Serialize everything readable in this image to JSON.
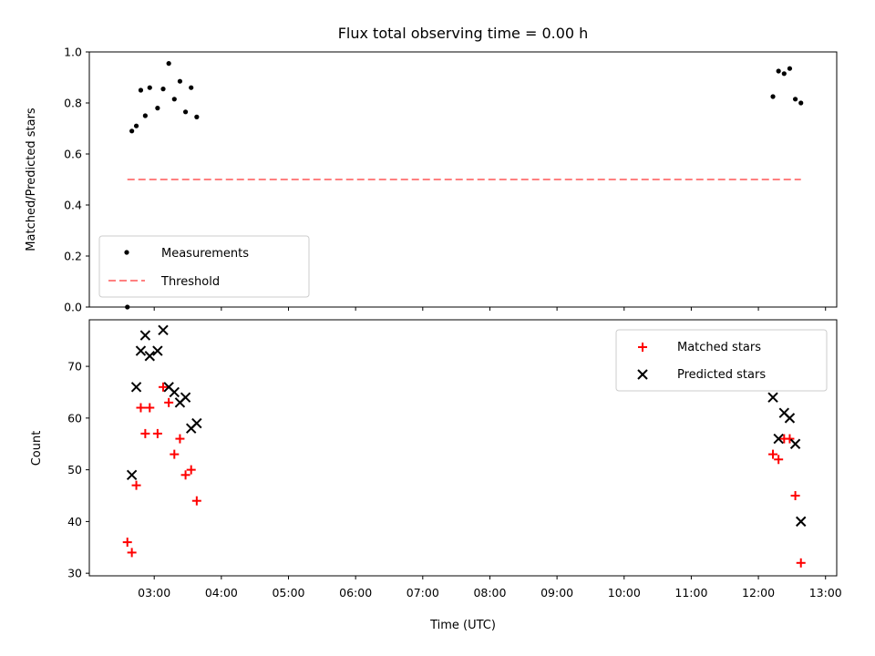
{
  "chart_data": [
    {
      "type": "scatter",
      "title": "Flux total observing time = 0.00 h",
      "xlabel": "",
      "ylabel": "Matched/Predicted stars",
      "ylim": [
        0.0,
        1.0
      ],
      "yticks": [
        "0.0",
        "0.2",
        "0.4",
        "0.6",
        "0.8",
        "1.0"
      ],
      "legend_position": "lower-left",
      "series": [
        {
          "name": "Measurements",
          "marker": "dot",
          "color": "#000000",
          "points": [
            {
              "x": "02:36",
              "y": 0.0
            },
            {
              "x": "02:40",
              "y": 0.69
            },
            {
              "x": "02:44",
              "y": 0.71
            },
            {
              "x": "02:48",
              "y": 0.85
            },
            {
              "x": "02:52",
              "y": 0.75
            },
            {
              "x": "02:56",
              "y": 0.86
            },
            {
              "x": "03:03",
              "y": 0.78
            },
            {
              "x": "03:08",
              "y": 0.855
            },
            {
              "x": "03:13",
              "y": 0.955
            },
            {
              "x": "03:18",
              "y": 0.815
            },
            {
              "x": "03:23",
              "y": 0.885
            },
            {
              "x": "03:28",
              "y": 0.765
            },
            {
              "x": "03:33",
              "y": 0.86
            },
            {
              "x": "03:38",
              "y": 0.745
            },
            {
              "x": "12:13",
              "y": 0.825
            },
            {
              "x": "12:18",
              "y": 0.925
            },
            {
              "x": "12:23",
              "y": 0.915
            },
            {
              "x": "12:28",
              "y": 0.935
            },
            {
              "x": "12:33",
              "y": 0.815
            },
            {
              "x": "12:38",
              "y": 0.8
            }
          ]
        },
        {
          "name": "Threshold",
          "marker": "dashed-line",
          "color": "#ff8080",
          "points": [
            {
              "x": "02:36",
              "y": 0.5
            },
            {
              "x": "12:38",
              "y": 0.5
            }
          ]
        }
      ]
    },
    {
      "type": "scatter",
      "title": "",
      "xlabel": "Time (UTC)",
      "ylabel": "Count",
      "ylim": [
        29.5,
        79
      ],
      "xlim": [
        "02:02",
        "13:10"
      ],
      "yticks": [
        "30",
        "40",
        "50",
        "60",
        "70"
      ],
      "xticks": [
        "03:00",
        "04:00",
        "05:00",
        "06:00",
        "07:00",
        "08:00",
        "09:00",
        "10:00",
        "11:00",
        "12:00",
        "13:00"
      ],
      "legend_position": "upper-right",
      "series": [
        {
          "name": "Matched stars",
          "marker": "plus",
          "color": "#ff0000",
          "points": [
            {
              "x": "02:36",
              "y": 36
            },
            {
              "x": "02:40",
              "y": 34
            },
            {
              "x": "02:44",
              "y": 47
            },
            {
              "x": "02:48",
              "y": 62
            },
            {
              "x": "02:52",
              "y": 57
            },
            {
              "x": "02:56",
              "y": 62
            },
            {
              "x": "03:03",
              "y": 57
            },
            {
              "x": "03:08",
              "y": 66
            },
            {
              "x": "03:13",
              "y": 63
            },
            {
              "x": "03:18",
              "y": 53
            },
            {
              "x": "03:23",
              "y": 56
            },
            {
              "x": "03:28",
              "y": 49
            },
            {
              "x": "03:33",
              "y": 50
            },
            {
              "x": "03:38",
              "y": 44
            },
            {
              "x": "12:13",
              "y": 53
            },
            {
              "x": "12:18",
              "y": 52
            },
            {
              "x": "12:23",
              "y": 56
            },
            {
              "x": "12:28",
              "y": 56
            },
            {
              "x": "12:33",
              "y": 45
            },
            {
              "x": "12:38",
              "y": 32
            }
          ]
        },
        {
          "name": "Predicted stars",
          "marker": "x",
          "color": "#000000",
          "points": [
            {
              "x": "02:40",
              "y": 49
            },
            {
              "x": "02:44",
              "y": 66
            },
            {
              "x": "02:48",
              "y": 73
            },
            {
              "x": "02:52",
              "y": 76
            },
            {
              "x": "02:56",
              "y": 72
            },
            {
              "x": "03:03",
              "y": 73
            },
            {
              "x": "03:08",
              "y": 77
            },
            {
              "x": "03:13",
              "y": 66
            },
            {
              "x": "03:18",
              "y": 65
            },
            {
              "x": "03:23",
              "y": 63
            },
            {
              "x": "03:28",
              "y": 64
            },
            {
              "x": "03:33",
              "y": 58
            },
            {
              "x": "03:38",
              "y": 59
            },
            {
              "x": "12:13",
              "y": 64
            },
            {
              "x": "12:18",
              "y": 56
            },
            {
              "x": "12:23",
              "y": 61
            },
            {
              "x": "12:28",
              "y": 60
            },
            {
              "x": "12:33",
              "y": 55
            },
            {
              "x": "12:38",
              "y": 40
            }
          ]
        }
      ]
    }
  ]
}
